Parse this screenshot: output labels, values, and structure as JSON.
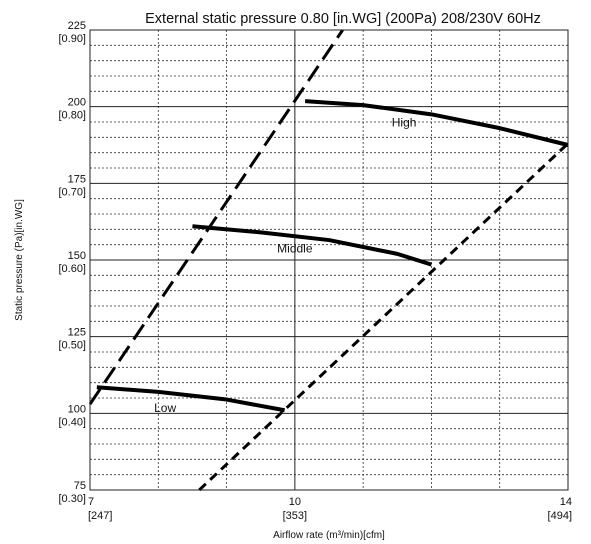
{
  "chart_data": {
    "type": "line",
    "title": "External static pressure 0.80 [in.WG] (200Pa)  208/230V 60Hz",
    "xlabel": "Airflow rate (m³/min)[cfm]",
    "ylabel": "Static pressure (Pa)[in.WG]",
    "xlim": [
      7,
      14
    ],
    "ylim": [
      75,
      225
    ],
    "grid": true,
    "x_ticks": [
      {
        "value": 7,
        "label": "7",
        "sublabel": "[247]"
      },
      {
        "value": 10,
        "label": "10",
        "sublabel": "[353]"
      },
      {
        "value": 14,
        "label": "14",
        "sublabel": "[494]"
      }
    ],
    "y_ticks": [
      {
        "value": 75,
        "label": "75",
        "sublabel": "[0.30]"
      },
      {
        "value": 100,
        "label": "100",
        "sublabel": "[0.40]"
      },
      {
        "value": 125,
        "label": "125",
        "sublabel": "[0.50]"
      },
      {
        "value": 150,
        "label": "150",
        "sublabel": "[0.60]"
      },
      {
        "value": 175,
        "label": "175",
        "sublabel": "[0.70]"
      },
      {
        "value": 200,
        "label": "200",
        "sublabel": "[0.80]"
      },
      {
        "value": 225,
        "label": "225",
        "sublabel": "[0.90]"
      }
    ],
    "minor_x": [
      8,
      9,
      11,
      12,
      13
    ],
    "minor_y_step": 5,
    "series": [
      {
        "name": "High",
        "style": "solid",
        "x": [
          10.15,
          11.0,
          12.0,
          13.0,
          14.0
        ],
        "y": [
          201.8,
          200.5,
          197.5,
          193.0,
          187.5
        ],
        "label_at": [
          11.6,
          193.5
        ]
      },
      {
        "name": "Middle",
        "style": "solid",
        "x": [
          8.5,
          9.5,
          10.5,
          11.5,
          12.0
        ],
        "y": [
          161.0,
          159.0,
          156.5,
          152.0,
          148.5
        ],
        "label_at": [
          10.0,
          152.5
        ]
      },
      {
        "name": "Low",
        "style": "solid",
        "x": [
          7.1,
          8.0,
          9.0,
          9.85
        ],
        "y": [
          108.5,
          107.0,
          104.5,
          101.0
        ],
        "label_at": [
          8.1,
          100.5
        ]
      }
    ],
    "boundary_lines": [
      {
        "style": "long-dash",
        "x": [
          7.0,
          10.7
        ],
        "y": [
          103.0,
          225.0
        ]
      },
      {
        "style": "short-dash",
        "x": [
          8.6,
          14.0
        ],
        "y": [
          75.0,
          188.0
        ]
      }
    ]
  }
}
